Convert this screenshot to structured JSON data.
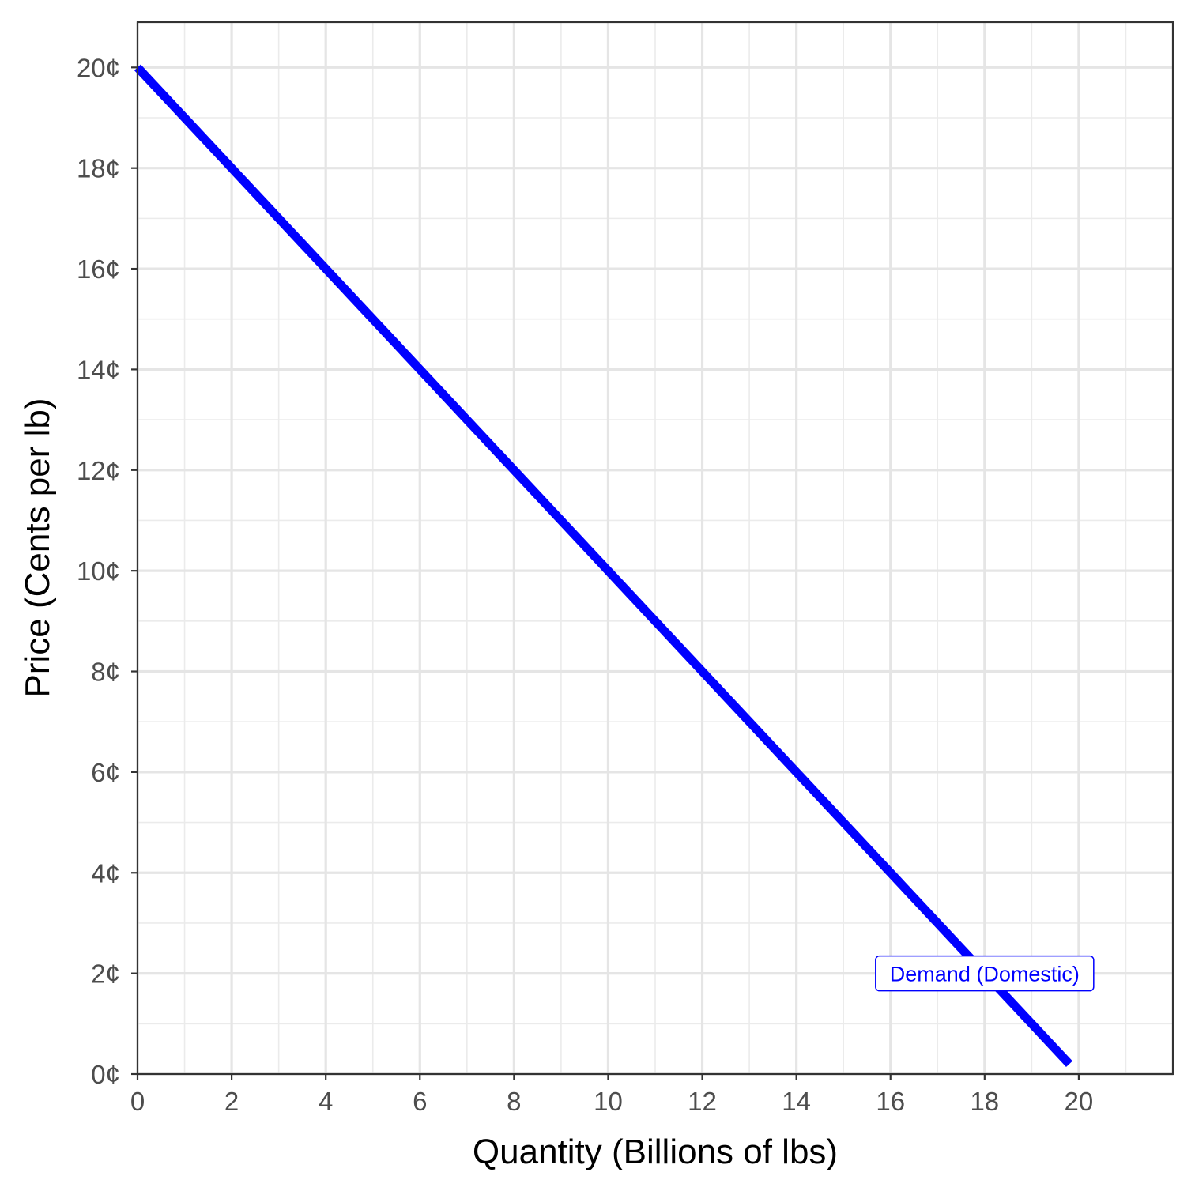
{
  "chart_data": {
    "type": "line",
    "title": "",
    "xlabel": "Quantity (Billions of lbs)",
    "ylabel": "Price (Cents per lb)",
    "xlim": [
      0,
      22
    ],
    "ylim": [
      0,
      20.9
    ],
    "x_major_ticks": [
      0,
      2,
      4,
      6,
      8,
      10,
      12,
      14,
      16,
      18,
      20
    ],
    "x_tick_labels": [
      "0",
      "2",
      "4",
      "6",
      "8",
      "10",
      "12",
      "14",
      "16",
      "18",
      "20"
    ],
    "y_major_ticks": [
      0,
      2,
      4,
      6,
      8,
      10,
      12,
      14,
      16,
      18,
      20
    ],
    "y_tick_labels": [
      "0¢",
      "2¢",
      "4¢",
      "6¢",
      "8¢",
      "10¢",
      "12¢",
      "14¢",
      "16¢",
      "18¢",
      "20¢"
    ],
    "grid": true,
    "series": [
      {
        "name": "Demand (Domestic)",
        "color": "#0000ff",
        "x": [
          0,
          19.8
        ],
        "y": [
          20,
          0.2
        ]
      }
    ],
    "annotations": [
      {
        "text": "Demand (Domestic)",
        "x": 18,
        "y": 2,
        "color": "#0000ff"
      }
    ]
  }
}
